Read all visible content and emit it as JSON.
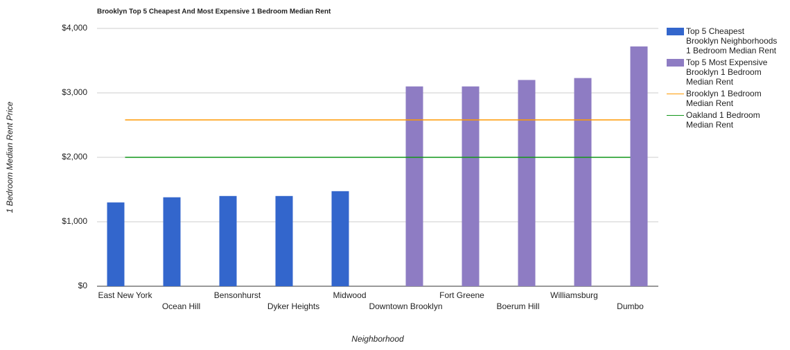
{
  "chart_data": {
    "type": "bar",
    "title": "Brooklyn Top 5 Cheapest And Most Expensive 1 Bedroom Median Rent",
    "x_label": "Neighborhood",
    "y_label": "1 Bedroom Median Rent Price",
    "categories": [
      "East New York",
      "Ocean Hill",
      "Bensonhurst",
      "Dyker Heights",
      "Midwood",
      "Downtown Brooklyn",
      "Fort Greene",
      "Boerum Hill",
      "Williamsburg",
      "Dumbo"
    ],
    "series": [
      {
        "name": "Top 5 Cheapest Brooklyn Neighborhoods 1 Bedroom Median Rent",
        "type": "bar",
        "color": "#3366cc",
        "values": [
          1300,
          1380,
          1400,
          1400,
          1475,
          null,
          null,
          null,
          null,
          null
        ]
      },
      {
        "name": "Top 5 Most Expensive Brooklyn 1 Bedroom Median Rent",
        "type": "bar",
        "color": "#8e7cc3",
        "values": [
          null,
          null,
          null,
          null,
          null,
          3100,
          3100,
          3200,
          3230,
          3720
        ]
      },
      {
        "name": "Brooklyn 1 Bedroom Median Rent",
        "type": "line",
        "color": "#ff9900",
        "values": [
          2580,
          2580,
          2580,
          2580,
          2580,
          2580,
          2580,
          2580,
          2580,
          2580
        ]
      },
      {
        "name": "Oakland 1 Bedroom Median Rent",
        "type": "line",
        "color": "#109618",
        "values": [
          2000,
          2000,
          2000,
          2000,
          2000,
          2000,
          2000,
          2000,
          2000,
          2000
        ]
      }
    ],
    "ylim": [
      0,
      4000
    ],
    "yticks": [
      {
        "value": 0,
        "label": "$0"
      },
      {
        "value": 1000,
        "label": "$1,000"
      },
      {
        "value": 2000,
        "label": "$2,000"
      },
      {
        "value": 3000,
        "label": "$3,000"
      },
      {
        "value": 4000,
        "label": "$4,000"
      }
    ],
    "grid": true,
    "legend": "right"
  }
}
